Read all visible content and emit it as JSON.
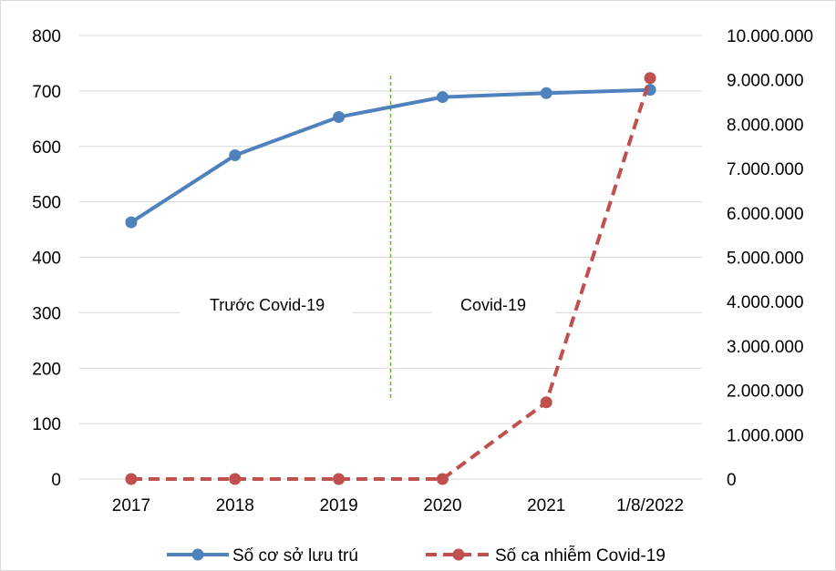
{
  "chart_data": {
    "type": "line",
    "categories": [
      "2017",
      "2018",
      "2019",
      "2020",
      "2021",
      "1/8/2022"
    ],
    "series": [
      {
        "name": "Số cơ sở lưu trú",
        "axis": "left",
        "style": "solid",
        "color": "#4f81bd",
        "values": [
          463,
          584,
          653,
          689,
          696,
          702
        ]
      },
      {
        "name": "Số ca nhiễm Covid-19",
        "axis": "right",
        "style": "dashed",
        "color": "#c0504d",
        "values": [
          0,
          0,
          0,
          0,
          1730000,
          9040000
        ]
      }
    ],
    "y_left": {
      "ylim": [
        0,
        800
      ],
      "ticks": [
        "0",
        "100",
        "200",
        "300",
        "400",
        "500",
        "600",
        "700",
        "800"
      ]
    },
    "y_right": {
      "ylim": [
        0,
        10000000
      ],
      "ticks": [
        "0",
        "1.000.000",
        "2.000.000",
        "3.000.000",
        "4.000.000",
        "5.000.000",
        "6.000.000",
        "7.000.000",
        "8.000.000",
        "9.000.000",
        "10.000.000"
      ]
    },
    "annotations": {
      "before": "Trước Covid-19",
      "after": "Covid-19",
      "divider_color": "#70ad47"
    },
    "grid": true,
    "gridline_color": "#d9d9d9",
    "legend": "bottom"
  }
}
